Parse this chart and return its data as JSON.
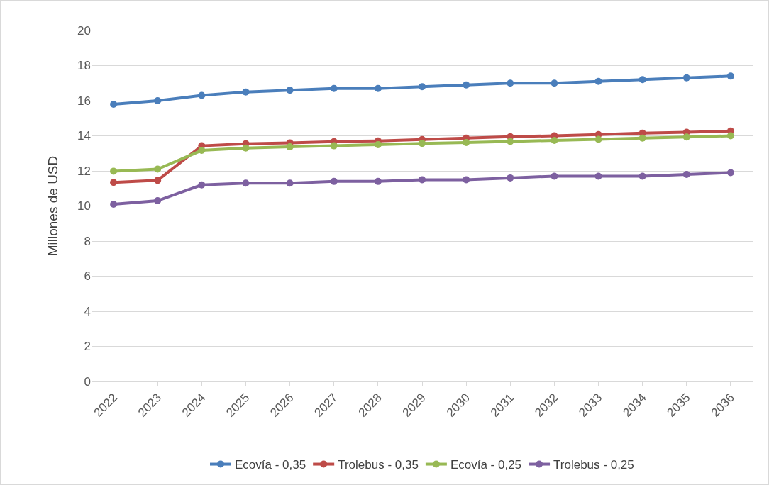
{
  "chart_data": {
    "type": "line",
    "ylabel": "Millones de USD",
    "categories": [
      "2022",
      "2023",
      "2024",
      "2025",
      "2026",
      "2027",
      "2028",
      "2029",
      "2030",
      "2031",
      "2032",
      "2033",
      "2034",
      "2035",
      "2036"
    ],
    "series": [
      {
        "name": "Ecovía - 0,35",
        "color": "#4a7ebb",
        "values": [
          15.8,
          16.0,
          16.3,
          16.5,
          16.6,
          16.7,
          16.7,
          16.8,
          16.9,
          17.0,
          17.0,
          17.1,
          17.2,
          17.3,
          17.4
        ]
      },
      {
        "name": "Trolebus - 0,35",
        "color": "#be4b48",
        "values": [
          11.34,
          11.46,
          13.43,
          13.55,
          13.6,
          13.67,
          13.71,
          13.79,
          13.87,
          13.95,
          14.0,
          14.07,
          14.15,
          14.2,
          14.27
        ]
      },
      {
        "name": "Ecovía - 0,25",
        "color": "#98b954",
        "values": [
          11.98,
          12.1,
          13.17,
          13.3,
          13.37,
          13.43,
          13.5,
          13.57,
          13.62,
          13.68,
          13.74,
          13.8,
          13.87,
          13.93,
          14.0
        ]
      },
      {
        "name": "Trolebus - 0,25",
        "color": "#7d60a0",
        "values": [
          10.1,
          10.3,
          11.2,
          11.3,
          11.3,
          11.4,
          11.4,
          11.5,
          11.5,
          11.6,
          11.7,
          11.7,
          11.7,
          11.8,
          11.9
        ]
      }
    ],
    "ylim": [
      0,
      20
    ],
    "yticks": [
      0,
      2,
      4,
      6,
      8,
      10,
      12,
      14,
      16,
      18,
      20
    ],
    "grid": "y",
    "legend": "bottom",
    "marker": "circle",
    "line_style": "solid"
  }
}
